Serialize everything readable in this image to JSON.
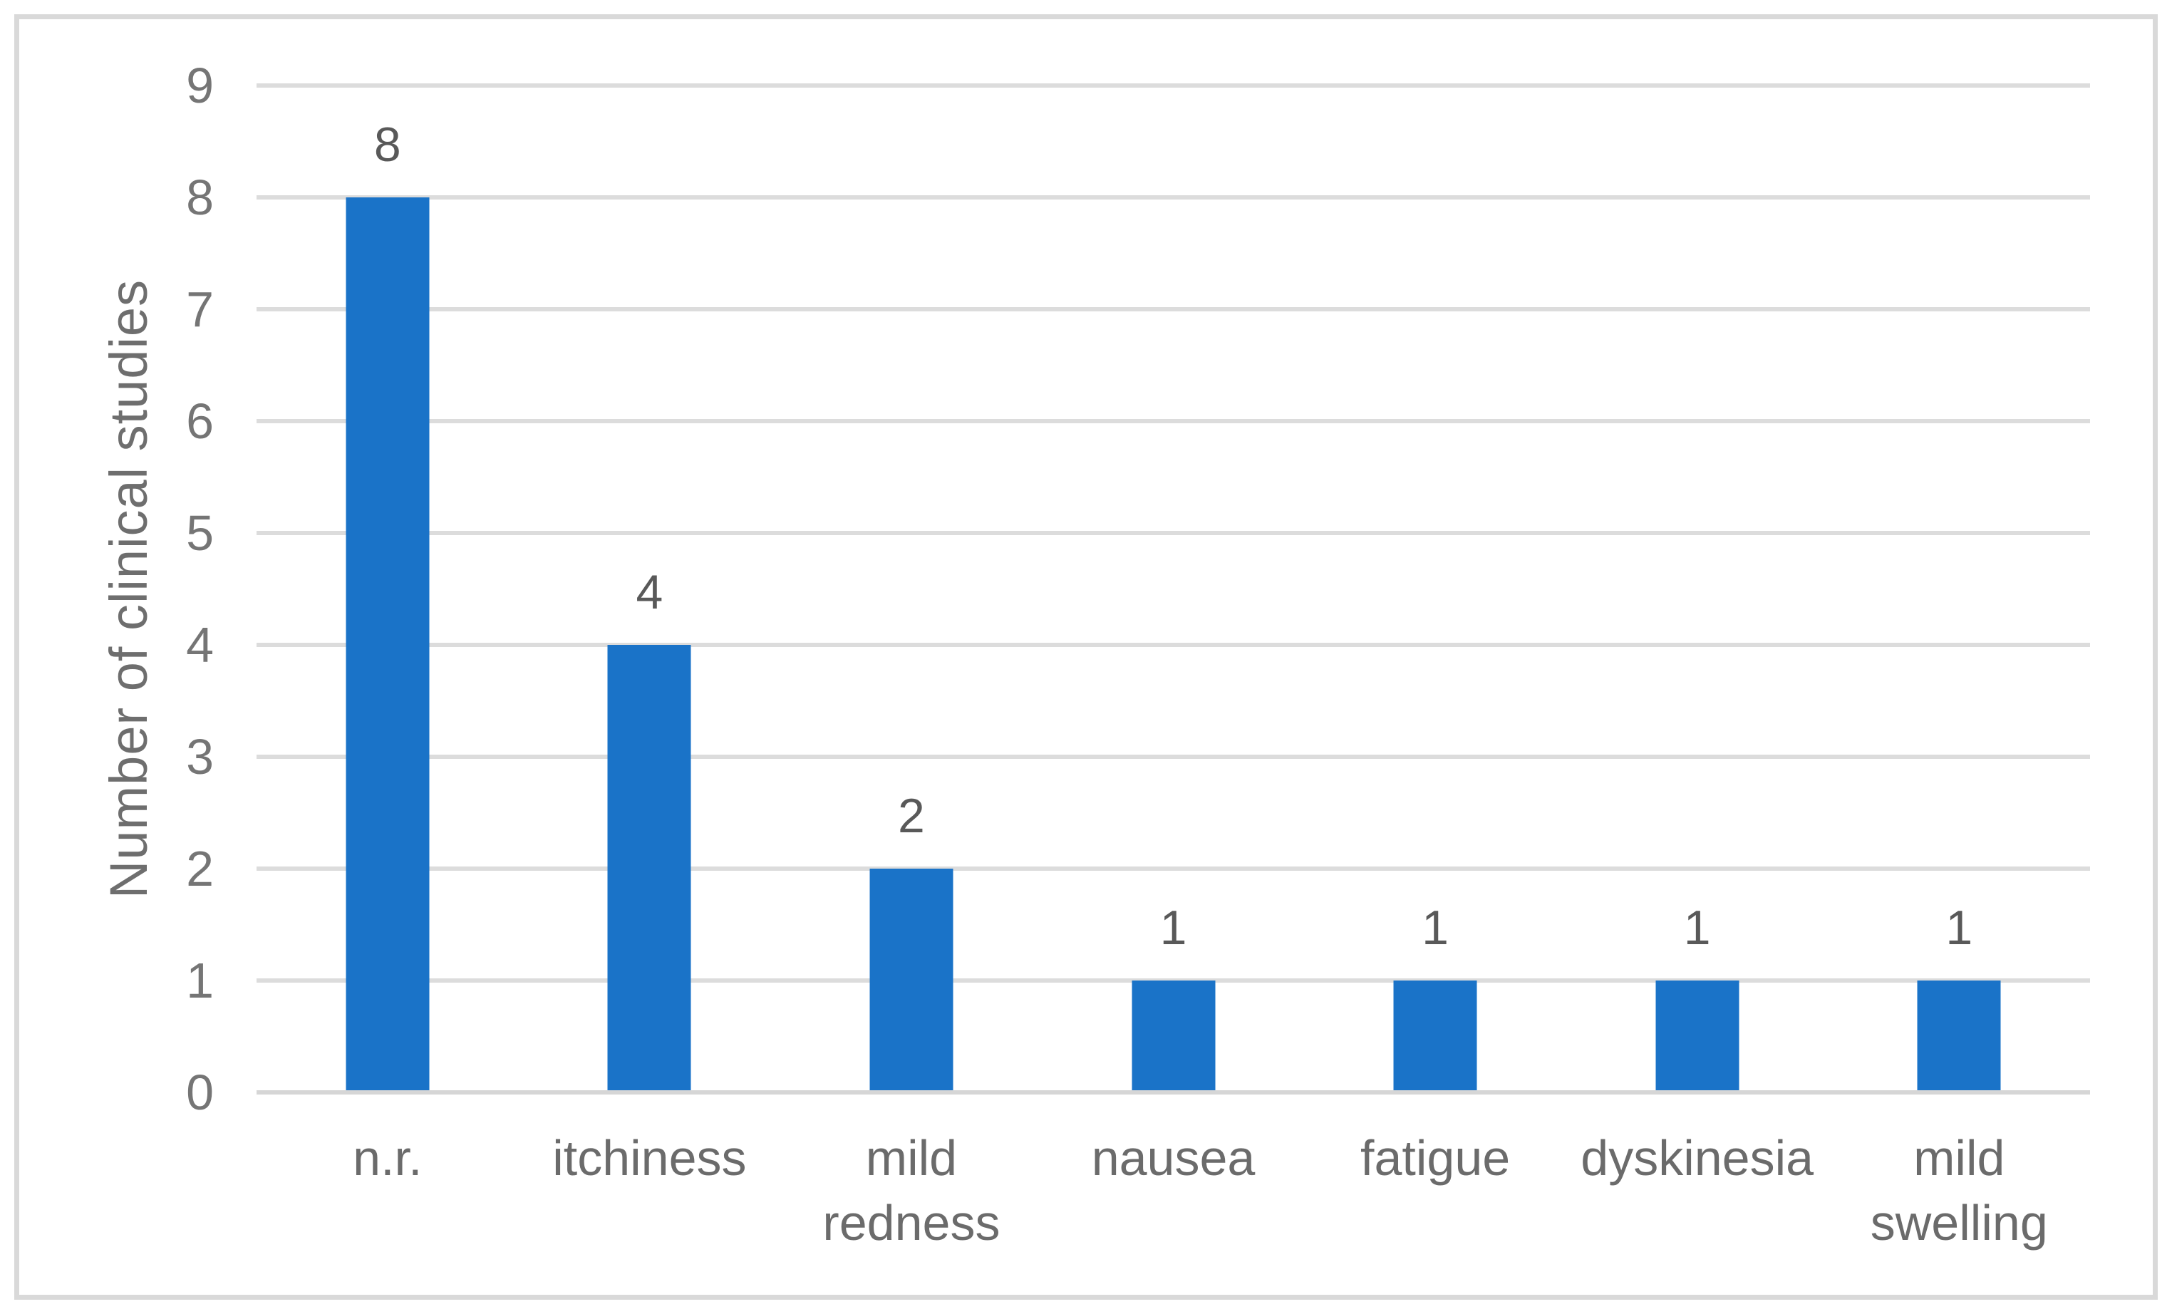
{
  "chart_data": {
    "type": "bar",
    "title": "",
    "xlabel": "",
    "ylabel": "Number of clinical studies",
    "categories": [
      "n.r.",
      "itchiness",
      "mild\nredness",
      "nausea",
      "fatigue",
      "dyskinesia",
      "mild\nswelling"
    ],
    "values": [
      8,
      4,
      2,
      1,
      1,
      1,
      1
    ],
    "data_labels": [
      8,
      4,
      2,
      1,
      1,
      1,
      1
    ],
    "ylim": [
      0,
      9
    ],
    "yticks": [
      0,
      1,
      2,
      3,
      4,
      5,
      6,
      7,
      8,
      9
    ],
    "grid": "horizontal-on",
    "legend": "none",
    "colors": {
      "bar": "#1a73c8",
      "gridline": "#dcdcdc",
      "axis_line": "#d6d6d6",
      "frame_border": "#d9d9d9",
      "axis_text": "#757575",
      "category_text": "#6b6b6b",
      "data_label_text": "#595959",
      "background": "#ffffff"
    }
  }
}
